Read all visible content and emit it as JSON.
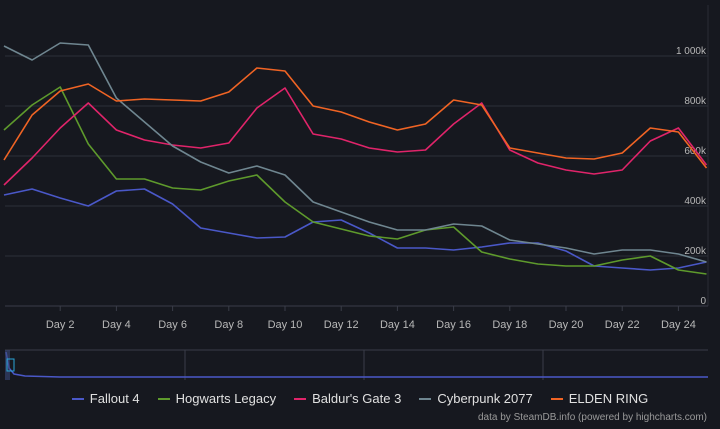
{
  "chart_data": {
    "type": "line",
    "title": "",
    "xlabel": "",
    "ylabel": "",
    "x": [
      0,
      1,
      2,
      3,
      4,
      5,
      6,
      7,
      8,
      9,
      10,
      11,
      12,
      13,
      14,
      15,
      16,
      17,
      18,
      19,
      20,
      21,
      22,
      23,
      24,
      25
    ],
    "x_tick_labels": [
      "Day 2",
      "Day 4",
      "Day 6",
      "Day 8",
      "Day 10",
      "Day 12",
      "Day 14",
      "Day 16",
      "Day 18",
      "Day 20",
      "Day 22",
      "Day 24"
    ],
    "x_tick_values": [
      2,
      4,
      6,
      8,
      10,
      12,
      14,
      16,
      18,
      20,
      22,
      24
    ],
    "y_tick_labels": [
      "0",
      "200k",
      "400k",
      "600k",
      "800k",
      "1 000k"
    ],
    "y_tick_values": [
      0,
      200,
      400,
      600,
      800,
      1000
    ],
    "ylim": [
      0,
      1000
    ],
    "grid": true,
    "legend_position": "bottom",
    "series": [
      {
        "name": "Fallout 4",
        "color": "#4a58c8",
        "values": [
          444,
          468,
          432,
          400,
          460,
          468,
          408,
          312,
          292,
          272,
          276,
          336,
          344,
          292,
          232,
          232,
          224,
          236,
          252,
          252,
          220,
          160,
          152,
          144,
          152,
          176
        ]
      },
      {
        "name": "Hogwarts Legacy",
        "color": "#5e9a2c",
        "values": [
          704,
          804,
          876,
          648,
          508,
          508,
          472,
          464,
          500,
          524,
          416,
          336,
          308,
          280,
          268,
          304,
          316,
          216,
          188,
          168,
          160,
          160,
          184,
          200,
          144,
          128
        ]
      },
      {
        "name": "Baldur's Gate 3",
        "color": "#e0246a",
        "values": [
          484,
          592,
          712,
          812,
          704,
          664,
          644,
          632,
          652,
          792,
          872,
          688,
          668,
          632,
          616,
          624,
          728,
          812,
          624,
          572,
          544,
          528,
          544,
          660,
          712,
          564
        ]
      },
      {
        "name": "Cyberpunk 2077",
        "color": "#6f8690",
        "values": [
          1040,
          984,
          1052,
          1044,
          832,
          736,
          640,
          576,
          532,
          560,
          524,
          416,
          376,
          336,
          304,
          304,
          328,
          320,
          264,
          248,
          232,
          208,
          224,
          224,
          208,
          176
        ]
      },
      {
        "name": "ELDEN RING",
        "color": "#f06424",
        "values": [
          584,
          764,
          860,
          888,
          820,
          828,
          824,
          820,
          856,
          952,
          940,
          800,
          776,
          736,
          704,
          728,
          824,
          804,
          632,
          612,
          592,
          588,
          612,
          712,
          696,
          552
        ]
      }
    ]
  },
  "credit": "data by SteamDB.info (powered by highcharts.com)"
}
